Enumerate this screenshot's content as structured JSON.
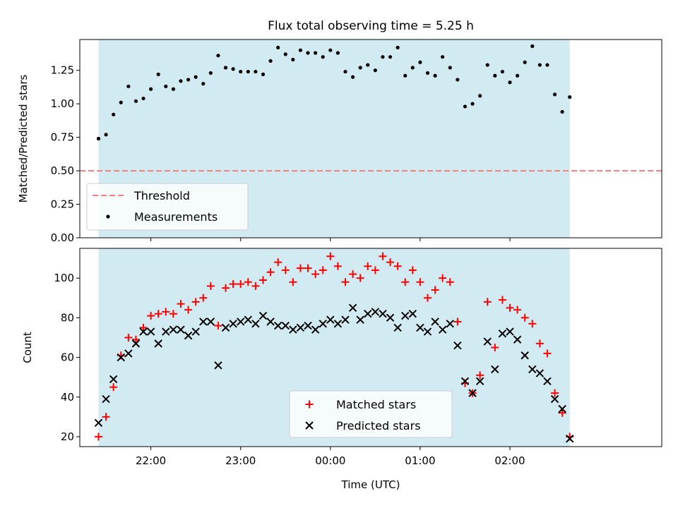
{
  "chart_data": {
    "title": "Flux total observing time = 5.25 h",
    "shared_x": {
      "label": "Time (UTC)",
      "ticks": [
        "22:00",
        "23:00",
        "00:00",
        "01:00",
        "02:00"
      ],
      "observing_window": [
        "21:25",
        "02:40"
      ]
    },
    "panels": [
      {
        "type": "scatter",
        "ylabel": "Matched/Predicted stars",
        "ylim": [
          0,
          1.48
        ],
        "yticks": [
          "0.00",
          "0.25",
          "0.50",
          "0.75",
          "1.00",
          "1.25"
        ],
        "legend_position": "lower-left",
        "threshold": {
          "name": "Threshold",
          "value": 0.5,
          "color": "#f08080"
        },
        "series": [
          {
            "name": "Measurements",
            "color": "#000000",
            "x": [
              "21:25",
              "21:30",
              "21:35",
              "21:40",
              "21:45",
              "21:50",
              "21:55",
              "22:00",
              "22:05",
              "22:10",
              "22:15",
              "22:20",
              "22:25",
              "22:30",
              "22:35",
              "22:40",
              "22:45",
              "22:50",
              "22:55",
              "23:00",
              "23:05",
              "23:10",
              "23:15",
              "23:20",
              "23:25",
              "23:30",
              "23:35",
              "23:40",
              "23:45",
              "23:50",
              "23:55",
              "00:00",
              "00:05",
              "00:10",
              "00:15",
              "00:20",
              "00:25",
              "00:30",
              "00:35",
              "00:40",
              "00:45",
              "00:50",
              "00:55",
              "01:00",
              "01:05",
              "01:10",
              "01:15",
              "01:20",
              "01:25",
              "01:30",
              "01:35",
              "01:40",
              "01:45",
              "01:50",
              "01:55",
              "02:00",
              "02:05",
              "02:10",
              "02:15",
              "02:20",
              "02:25",
              "02:30",
              "02:35",
              "02:40"
            ],
            "y": [
              0.74,
              0.77,
              0.92,
              1.01,
              1.13,
              1.02,
              1.04,
              1.11,
              1.22,
              1.13,
              1.11,
              1.17,
              1.18,
              1.2,
              1.15,
              1.23,
              1.36,
              1.27,
              1.26,
              1.24,
              1.24,
              1.24,
              1.22,
              1.32,
              1.42,
              1.37,
              1.33,
              1.4,
              1.38,
              1.38,
              1.35,
              1.4,
              1.38,
              1.24,
              1.2,
              1.27,
              1.29,
              1.25,
              1.35,
              1.35,
              1.42,
              1.21,
              1.27,
              1.31,
              1.23,
              1.21,
              1.35,
              1.27,
              1.18,
              0.98,
              1.0,
              1.06,
              1.29,
              1.21,
              1.24,
              1.16,
              1.21,
              1.31,
              1.43,
              1.29,
              1.29,
              1.07,
              0.94,
              1.05
            ]
          }
        ]
      },
      {
        "type": "scatter",
        "ylabel": "Count",
        "ylim": [
          15,
          115
        ],
        "yticks": [
          "20",
          "40",
          "60",
          "80",
          "100"
        ],
        "legend_position": "lower-center",
        "series": [
          {
            "name": "Matched stars",
            "marker": "+",
            "color": "#ff0000",
            "x": [
              "21:25",
              "21:30",
              "21:35",
              "21:40",
              "21:45",
              "21:50",
              "21:55",
              "22:00",
              "22:05",
              "22:10",
              "22:15",
              "22:20",
              "22:25",
              "22:30",
              "22:35",
              "22:40",
              "22:45",
              "22:50",
              "22:55",
              "23:00",
              "23:05",
              "23:10",
              "23:15",
              "23:20",
              "23:25",
              "23:30",
              "23:35",
              "23:40",
              "23:45",
              "23:50",
              "23:55",
              "00:00",
              "00:05",
              "00:10",
              "00:15",
              "00:20",
              "00:25",
              "00:30",
              "00:35",
              "00:40",
              "00:45",
              "00:50",
              "00:55",
              "01:00",
              "01:05",
              "01:10",
              "01:15",
              "01:20",
              "01:25",
              "01:30",
              "01:35",
              "01:40",
              "01:45",
              "01:50",
              "01:55",
              "02:00",
              "02:05",
              "02:10",
              "02:15",
              "02:20",
              "02:25",
              "02:30",
              "02:35",
              "02:40"
            ],
            "y": [
              20,
              30,
              45,
              61,
              70,
              69,
              75,
              81,
              82,
              83,
              82,
              87,
              84,
              88,
              90,
              96,
              76,
              95,
              97,
              97,
              98,
              96,
              99,
              103,
              108,
              104,
              98,
              105,
              105,
              102,
              104,
              111,
              106,
              98,
              102,
              100,
              106,
              104,
              111,
              108,
              106,
              98,
              104,
              98,
              90,
              94,
              100,
              98,
              78,
              47,
              42,
              51,
              88,
              65,
              89,
              85,
              84,
              80,
              77,
              67,
              62,
              42,
              32,
              20
            ]
          },
          {
            "name": "Predicted stars",
            "marker": "x",
            "color": "#000000",
            "x": [
              "21:25",
              "21:30",
              "21:35",
              "21:40",
              "21:45",
              "21:50",
              "21:55",
              "22:00",
              "22:05",
              "22:10",
              "22:15",
              "22:20",
              "22:25",
              "22:30",
              "22:35",
              "22:40",
              "22:45",
              "22:50",
              "22:55",
              "23:00",
              "23:05",
              "23:10",
              "23:15",
              "23:20",
              "23:25",
              "23:30",
              "23:35",
              "23:40",
              "23:45",
              "23:50",
              "23:55",
              "00:00",
              "00:05",
              "00:10",
              "00:15",
              "00:20",
              "00:25",
              "00:30",
              "00:35",
              "00:40",
              "00:45",
              "00:50",
              "00:55",
              "01:00",
              "01:05",
              "01:10",
              "01:15",
              "01:20",
              "01:25",
              "01:30",
              "01:35",
              "01:40",
              "01:45",
              "01:50",
              "01:55",
              "02:00",
              "02:05",
              "02:10",
              "02:15",
              "02:20",
              "02:25",
              "02:30",
              "02:35",
              "02:40"
            ],
            "y": [
              27,
              39,
              49,
              60,
              62,
              67,
              73,
              73,
              67,
              73,
              74,
              74,
              71,
              73,
              78,
              78,
              56,
              75,
              77,
              78,
              79,
              77,
              81,
              78,
              76,
              76,
              74,
              75,
              76,
              74,
              77,
              79,
              77,
              79,
              85,
              79,
              82,
              83,
              82,
              80,
              75,
              81,
              82,
              75,
              73,
              78,
              74,
              77,
              66,
              48,
              42,
              48,
              68,
              54,
              72,
              73,
              69,
              61,
              54,
              52,
              48,
              39,
              34,
              19
            ]
          }
        ]
      }
    ],
    "colors": {
      "observing_span": "#add8e6",
      "axes": "#000000"
    }
  }
}
